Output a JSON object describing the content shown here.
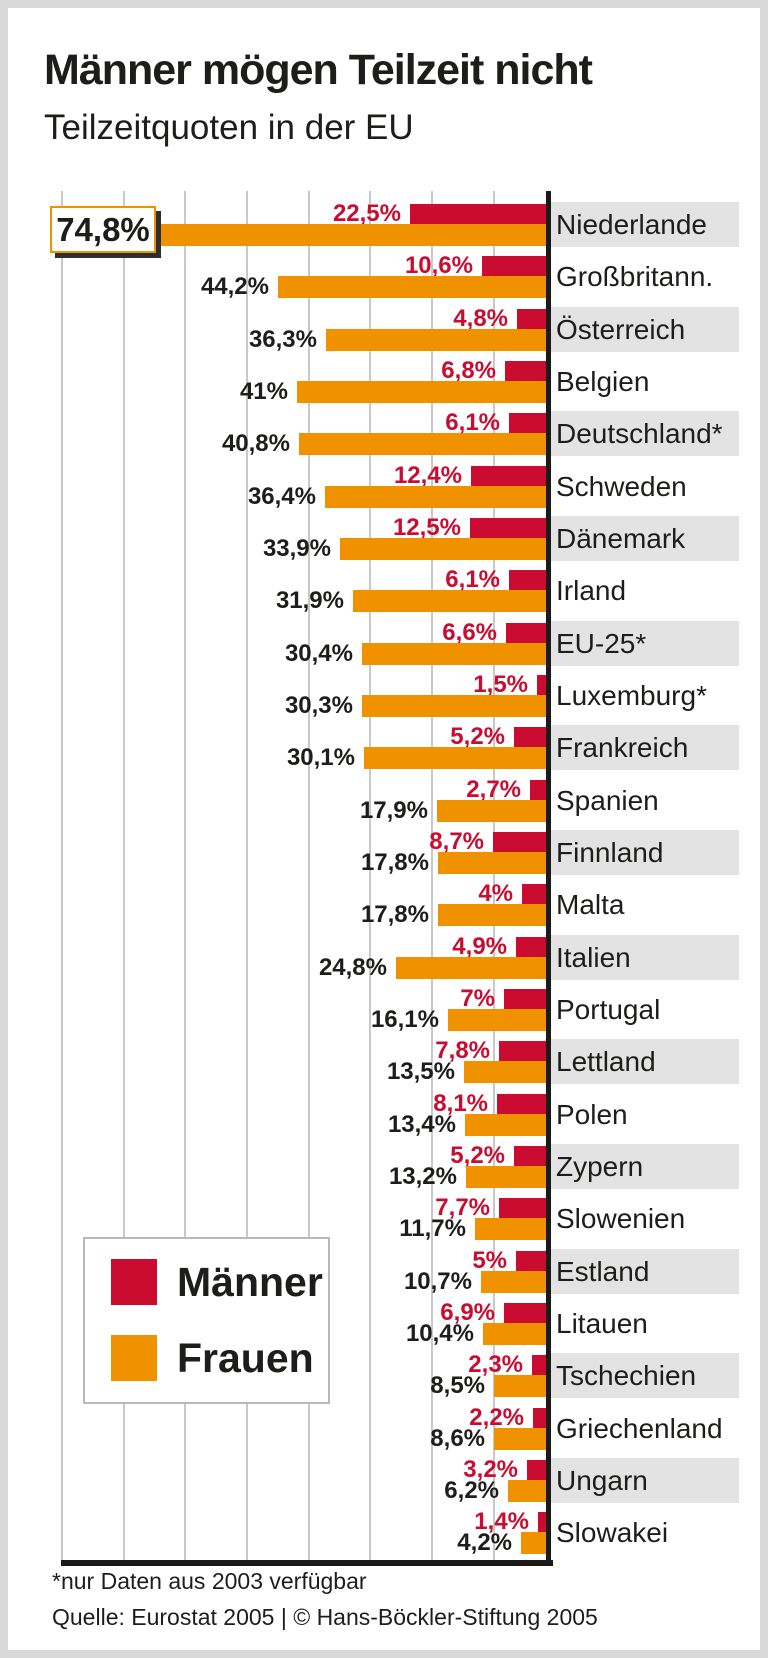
{
  "title": "Männer mögen Teilzeit nicht",
  "subtitle": "Teilzeitquoten in der EU",
  "legend": {
    "men_label": "Männer",
    "women_label": "Frauen"
  },
  "footnote": "*nur Daten aus 2003 verfügbar",
  "source": "Quelle: Eurostat 2005 | © Hans-Böckler-Stiftung 2005",
  "colors": {
    "men": "#c90c2f",
    "women": "#f09200",
    "row_highlight_bg": "#e3e3e3",
    "grid": "#c9c9c9",
    "axis": "#1a1a1a",
    "text": "#1d1d1b",
    "callout_border": "#f09200"
  },
  "chart_data": {
    "type": "bar",
    "orientation": "horizontal-left",
    "unit": "%",
    "title": "Männer mögen Teilzeit nicht",
    "subtitle": "Teilzeitquoten in der EU",
    "xlim": [
      0,
      80
    ],
    "grid_step": 10,
    "grid": true,
    "legend_position": "bottom-left",
    "categories": [
      "Niederlande",
      "Großbritann.",
      "Österreich",
      "Belgien",
      "Deutschland*",
      "Schweden",
      "Dänemark",
      "Irland",
      "EU-25*",
      "Luxemburg*",
      "Frankreich",
      "Spanien",
      "Finnland",
      "Malta",
      "Italien",
      "Portugal",
      "Lettland",
      "Polen",
      "Zypern",
      "Slowenien",
      "Estland",
      "Litauen",
      "Tschechien",
      "Griechenland",
      "Ungarn",
      "Slowakei"
    ],
    "series": [
      {
        "name": "Männer",
        "values": [
          22.5,
          10.6,
          4.8,
          6.8,
          6.1,
          12.4,
          12.5,
          6.1,
          6.6,
          1.5,
          5.2,
          2.7,
          8.7,
          4.0,
          4.9,
          7.0,
          7.8,
          8.1,
          5.2,
          7.7,
          5.0,
          6.9,
          2.3,
          2.2,
          3.2,
          1.4
        ],
        "labels": [
          "22,5%",
          "10,6%",
          "4,8%",
          "6,8%",
          "6,1%",
          "12,4%",
          "12,5%",
          "6,1%",
          "6,6%",
          "1,5%",
          "5,2%",
          "2,7%",
          "8,7%",
          "4%",
          "4,9%",
          "7%",
          "7,8%",
          "8,1%",
          "5,2%",
          "7,7%",
          "5%",
          "6,9%",
          "2,3%",
          "2,2%",
          "3,2%",
          "1,4%"
        ]
      },
      {
        "name": "Frauen",
        "values": [
          74.8,
          44.2,
          36.3,
          41.0,
          40.8,
          36.4,
          33.9,
          31.9,
          30.4,
          30.3,
          30.1,
          17.9,
          17.8,
          17.8,
          24.8,
          16.1,
          13.5,
          13.4,
          13.2,
          11.7,
          10.7,
          10.4,
          8.5,
          8.6,
          6.2,
          4.2
        ],
        "labels": [
          "74,8%",
          "44,2%",
          "36,3%",
          "41%",
          "40,8%",
          "36,4%",
          "33,9%",
          "31,9%",
          "30,4%",
          "30,3%",
          "30,1%",
          "17,9%",
          "17,8%",
          "17,8%",
          "24,8%",
          "16,1%",
          "13,5%",
          "13,4%",
          "13,2%",
          "11,7%",
          "10,7%",
          "10,4%",
          "8,5%",
          "8,6%",
          "6,2%",
          "4,2%"
        ]
      }
    ],
    "highlighted_value": "74,8%"
  }
}
